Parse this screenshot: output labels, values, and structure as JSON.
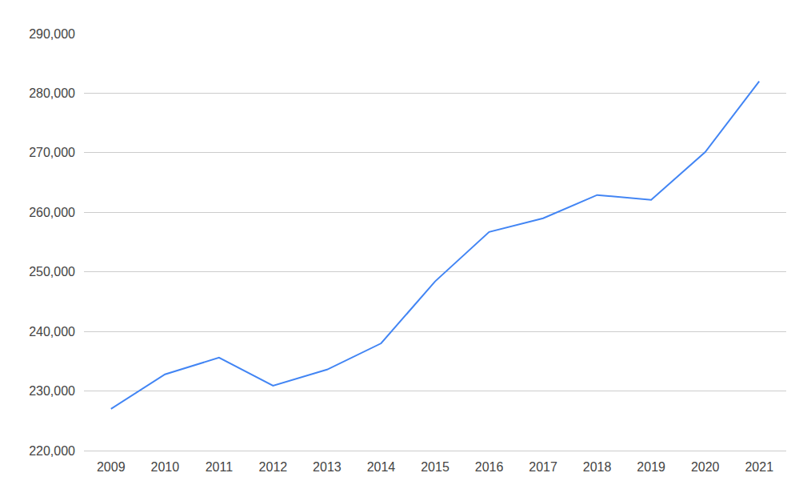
{
  "chart_data": {
    "type": "line",
    "x": [
      2009,
      2010,
      2011,
      2012,
      2013,
      2014,
      2015,
      2016,
      2017,
      2018,
      2019,
      2020,
      2021
    ],
    "values": [
      227000,
      232800,
      235600,
      230900,
      233600,
      238000,
      248400,
      256700,
      259000,
      262900,
      262100,
      270100,
      282000
    ],
    "color": "#4285f4",
    "xlim": [
      2008.5,
      2021.5
    ],
    "xticks": [
      2009,
      2010,
      2011,
      2012,
      2013,
      2014,
      2015,
      2016,
      2017,
      2018,
      2019,
      2020,
      2021
    ],
    "ylim": [
      220000,
      290000
    ],
    "yticks": [
      {
        "value": 220000,
        "label": "220,000"
      },
      {
        "value": 230000,
        "label": "230,000"
      },
      {
        "value": 240000,
        "label": "240,000"
      },
      {
        "value": 250000,
        "label": "250,000"
      },
      {
        "value": 260000,
        "label": "260,000"
      },
      {
        "value": 270000,
        "label": "270,000"
      },
      {
        "value": 280000,
        "label": "280,000"
      },
      {
        "value": 290000,
        "label": "290,000"
      }
    ],
    "grid": true
  }
}
